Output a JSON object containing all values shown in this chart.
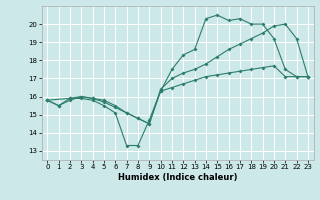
{
  "xlabel": "Humidex (Indice chaleur)",
  "bg_color": "#cce8e8",
  "grid_color": "#ffffff",
  "line_color": "#2d7d6b",
  "xlim": [
    -0.5,
    23.5
  ],
  "ylim": [
    12.5,
    21.0
  ],
  "yticks": [
    13,
    14,
    15,
    16,
    17,
    18,
    19,
    20
  ],
  "xticks": [
    0,
    1,
    2,
    3,
    4,
    5,
    6,
    7,
    8,
    9,
    10,
    11,
    12,
    13,
    14,
    15,
    16,
    17,
    18,
    19,
    20,
    21,
    22,
    23
  ],
  "line1_x": [
    0,
    1,
    2,
    3,
    4,
    5,
    6,
    7,
    8,
    9,
    10,
    11,
    12,
    13,
    14,
    15,
    16,
    17,
    18,
    19,
    20,
    21,
    22,
    23
  ],
  "line1_y": [
    15.8,
    15.5,
    15.9,
    15.9,
    15.8,
    15.5,
    15.1,
    13.3,
    13.3,
    14.7,
    16.3,
    17.5,
    18.3,
    18.6,
    20.3,
    20.5,
    20.2,
    20.3,
    20.0,
    20.0,
    19.2,
    17.5,
    17.1,
    17.1
  ],
  "line2_x": [
    0,
    2,
    3,
    4,
    5,
    6,
    7,
    8,
    9,
    10,
    11,
    12,
    13,
    14,
    15,
    16,
    17,
    18,
    19,
    20,
    21,
    22,
    23
  ],
  "line2_y": [
    15.8,
    15.9,
    16.0,
    15.9,
    15.8,
    15.5,
    15.1,
    14.8,
    14.5,
    16.4,
    17.0,
    17.3,
    17.5,
    17.8,
    18.2,
    18.6,
    18.9,
    19.2,
    19.5,
    19.9,
    20.0,
    19.2,
    17.1
  ],
  "line3_x": [
    0,
    1,
    2,
    3,
    4,
    5,
    6,
    7,
    8,
    9,
    10,
    11,
    12,
    13,
    14,
    15,
    16,
    17,
    18,
    19,
    20,
    21,
    22,
    23
  ],
  "line3_y": [
    15.8,
    15.5,
    15.8,
    16.0,
    15.9,
    15.7,
    15.4,
    15.1,
    14.8,
    14.5,
    16.3,
    16.5,
    16.7,
    16.9,
    17.1,
    17.2,
    17.3,
    17.4,
    17.5,
    17.6,
    17.7,
    17.1,
    17.1,
    17.1
  ]
}
